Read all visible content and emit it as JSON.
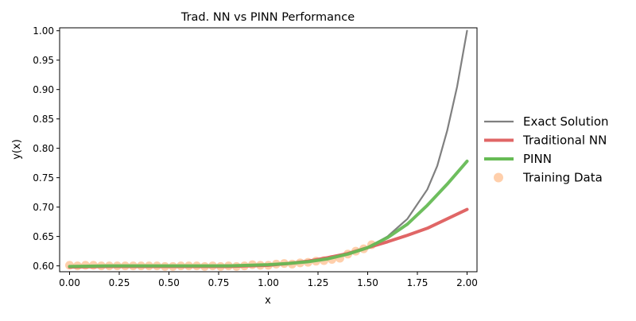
{
  "chart_data": {
    "type": "line",
    "title": "Trad. NN vs PINN Performance",
    "xlabel": "x",
    "ylabel": "y(x)",
    "xlim": [
      -0.05,
      2.05
    ],
    "ylim": [
      0.59,
      1.005
    ],
    "xticks": [
      "0.00",
      "0.25",
      "0.50",
      "0.75",
      "1.00",
      "1.25",
      "1.50",
      "1.75",
      "2.00"
    ],
    "yticks": [
      "0.60",
      "0.65",
      "0.70",
      "0.75",
      "0.80",
      "0.85",
      "0.90",
      "0.95",
      "1.00"
    ],
    "grid": false,
    "legend": "outside-right",
    "series": [
      {
        "name": "Exact Solution",
        "kind": "line",
        "color": "#808080",
        "x": [
          0.0,
          0.2,
          0.4,
          0.6,
          0.8,
          1.0,
          1.1,
          1.2,
          1.3,
          1.4,
          1.5,
          1.6,
          1.7,
          1.8,
          1.85,
          1.9,
          1.95,
          2.0
        ],
        "y": [
          0.6,
          0.6,
          0.6,
          0.6,
          0.601,
          0.602,
          0.604,
          0.607,
          0.612,
          0.62,
          0.631,
          0.65,
          0.68,
          0.73,
          0.77,
          0.83,
          0.905,
          1.0
        ]
      },
      {
        "name": "Traditional NN",
        "kind": "line",
        "color": "#e06666",
        "x": [
          0.0,
          0.2,
          0.4,
          0.6,
          0.8,
          1.0,
          1.1,
          1.2,
          1.3,
          1.4,
          1.5,
          1.6,
          1.7,
          1.8,
          1.9,
          2.0
        ],
        "y": [
          0.598,
          0.599,
          0.599,
          0.599,
          0.599,
          0.601,
          0.604,
          0.608,
          0.614,
          0.621,
          0.631,
          0.641,
          0.652,
          0.664,
          0.68,
          0.696
        ]
      },
      {
        "name": "PINN",
        "kind": "line",
        "color": "#66bb55",
        "x": [
          0.0,
          0.2,
          0.4,
          0.6,
          0.8,
          1.0,
          1.1,
          1.2,
          1.3,
          1.4,
          1.5,
          1.6,
          1.7,
          1.8,
          1.9,
          2.0
        ],
        "y": [
          0.599,
          0.6,
          0.6,
          0.6,
          0.6,
          0.602,
          0.604,
          0.607,
          0.612,
          0.62,
          0.631,
          0.648,
          0.671,
          0.703,
          0.739,
          0.778
        ]
      },
      {
        "name": "Training Data",
        "kind": "scatter",
        "color": "#ffbb88",
        "x": [
          0.0,
          0.04,
          0.08,
          0.12,
          0.16,
          0.2,
          0.24,
          0.28,
          0.32,
          0.36,
          0.4,
          0.44,
          0.48,
          0.52,
          0.56,
          0.6,
          0.64,
          0.68,
          0.72,
          0.76,
          0.8,
          0.84,
          0.88,
          0.92,
          0.96,
          1.0,
          1.04,
          1.08,
          1.12,
          1.16,
          1.2,
          1.24,
          1.28,
          1.32,
          1.36,
          1.4,
          1.44,
          1.48,
          1.52
        ],
        "y": [
          0.601,
          0.6,
          0.601,
          0.601,
          0.6,
          0.6,
          0.6,
          0.6,
          0.6,
          0.6,
          0.6,
          0.6,
          0.599,
          0.599,
          0.6,
          0.6,
          0.6,
          0.599,
          0.6,
          0.599,
          0.6,
          0.599,
          0.6,
          0.602,
          0.601,
          0.601,
          0.603,
          0.604,
          0.603,
          0.605,
          0.606,
          0.608,
          0.609,
          0.611,
          0.613,
          0.62,
          0.625,
          0.629,
          0.636
        ]
      }
    ]
  }
}
